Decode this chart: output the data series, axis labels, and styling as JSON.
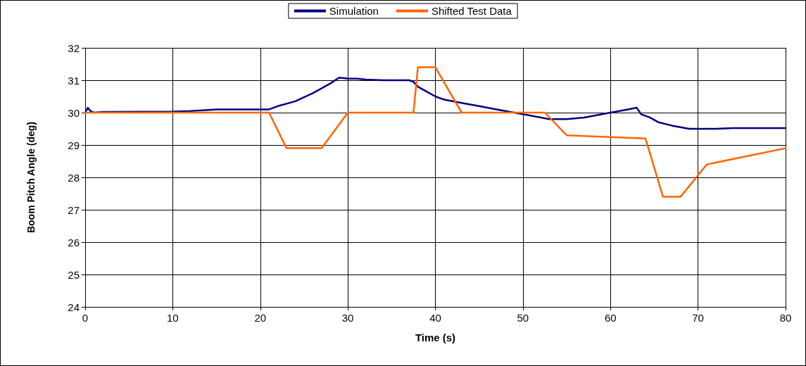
{
  "chart_data": {
    "type": "line",
    "xlabel": "Time (s)",
    "ylabel": "Boom Pitch Angle (deg)",
    "xlim": [
      0,
      80
    ],
    "xticks": [
      0,
      10,
      20,
      30,
      40,
      50,
      60,
      70,
      80
    ],
    "ylim": [
      24,
      32
    ],
    "yticks": [
      24,
      25,
      26,
      27,
      28,
      29,
      30,
      31,
      32
    ],
    "grid": true,
    "legend": "top",
    "marker": "none",
    "line_style": "solid",
    "series": [
      {
        "name": "Simulation",
        "color": "#000080",
        "x": [
          0,
          0.3,
          0.6,
          1,
          2,
          10,
          12,
          15,
          21,
          22,
          24,
          26,
          28,
          29,
          30,
          31,
          32,
          34,
          37,
          37.5,
          38,
          39,
          40,
          41,
          43,
          45,
          47,
          49,
          51,
          53,
          55,
          57,
          60,
          62,
          63,
          63.5,
          64.5,
          65.5,
          67,
          69,
          72,
          74,
          80
        ],
        "values": [
          30,
          30.15,
          30.05,
          30,
          30.02,
          30.03,
          30.05,
          30.1,
          30.1,
          30.2,
          30.35,
          30.6,
          30.9,
          31.08,
          31.05,
          31.05,
          31.02,
          31,
          31,
          30.95,
          30.8,
          30.65,
          30.5,
          30.4,
          30.3,
          30.2,
          30.1,
          30,
          29.9,
          29.8,
          29.8,
          29.85,
          30,
          30.1,
          30.15,
          29.95,
          29.85,
          29.7,
          29.6,
          29.5,
          29.5,
          29.52,
          29.52
        ]
      },
      {
        "name": "Shifted Test Data",
        "color": "#ff6600",
        "x": [
          0,
          21,
          23,
          27,
          30,
          37.5,
          38,
          40,
          43,
          52.5,
          55,
          64,
          66,
          68,
          71,
          80
        ],
        "values": [
          30,
          30,
          28.9,
          28.9,
          30,
          30,
          31.4,
          31.4,
          30,
          30,
          29.3,
          29.2,
          27.4,
          27.4,
          28.4,
          28.9
        ]
      }
    ]
  }
}
